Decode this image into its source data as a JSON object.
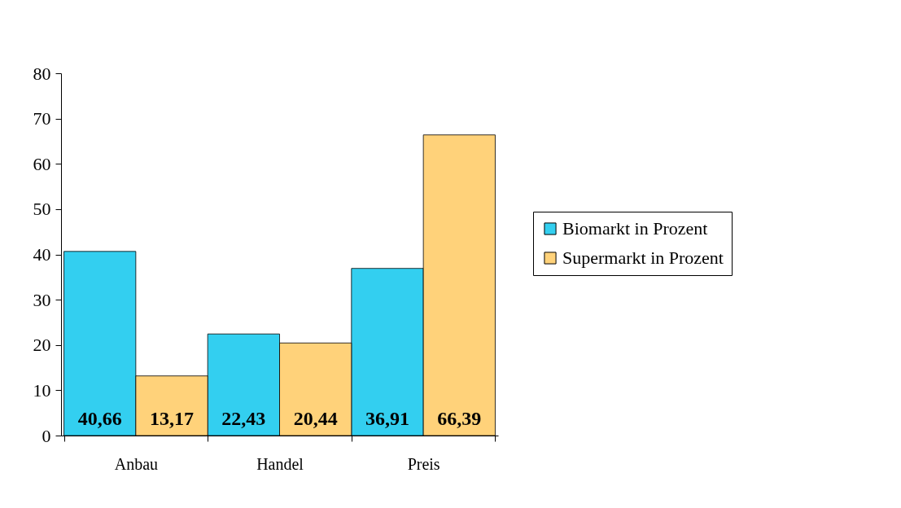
{
  "chart_data": {
    "type": "bar",
    "categories": [
      "Anbau",
      "Handel",
      "Preis"
    ],
    "series": [
      {
        "name": "Biomarkt in Prozent",
        "color": "#33cff0",
        "values": [
          40.66,
          22.43,
          36.91
        ],
        "value_labels": [
          "40,66",
          "22,43",
          "36,91"
        ]
      },
      {
        "name": "Supermarkt in Prozent",
        "color": "#ffd27a",
        "values": [
          13.17,
          20.44,
          66.39
        ],
        "value_labels": [
          "13,17",
          "20,44",
          "66,39"
        ]
      }
    ],
    "ylim": [
      0,
      80
    ],
    "yticks": [
      0,
      10,
      20,
      30,
      40,
      50,
      60,
      70,
      80
    ],
    "grid": false,
    "legend": "right"
  }
}
